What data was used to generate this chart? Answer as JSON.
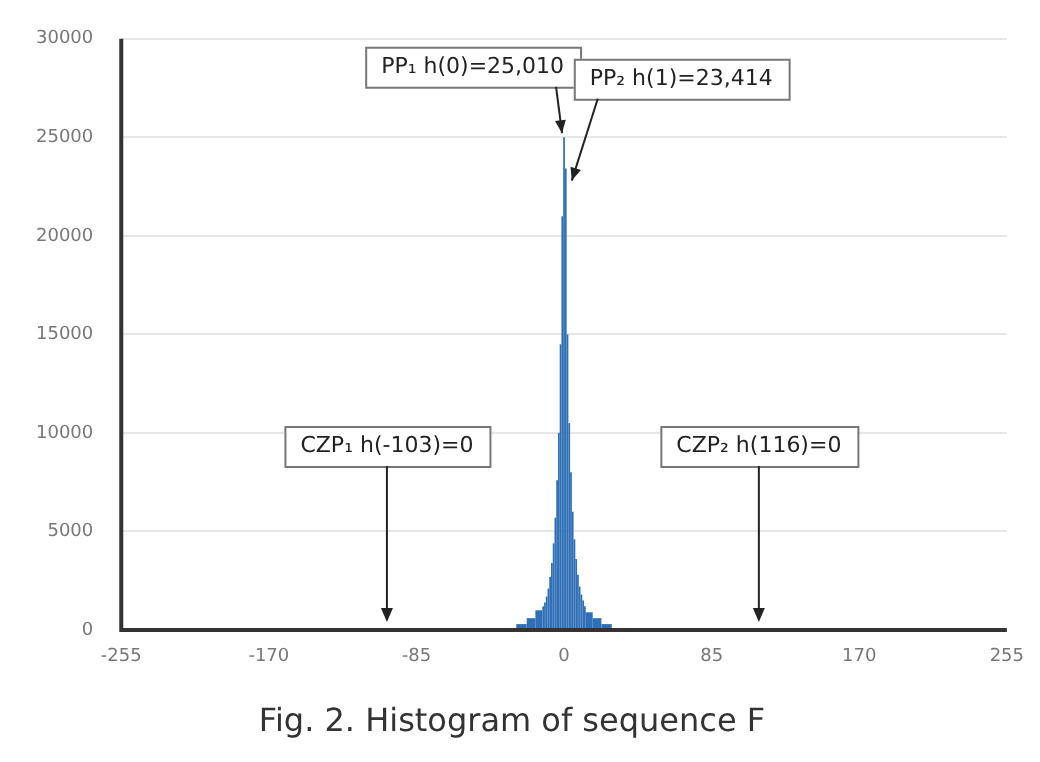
{
  "chart_data": {
    "type": "histogram",
    "title": "Fig. 2. Histogram of sequence F",
    "bins": [
      -35.5,
      -27.5,
      -21.5,
      -16.5,
      -12.5,
      -11.5,
      -10.5,
      -9.5,
      -8.5,
      -7.5,
      -6.5,
      -5.5,
      -4.5,
      -3.5,
      -2.5,
      -1.5,
      -0.5,
      0.5,
      1.5,
      2.5,
      3.5,
      4.5,
      5.5,
      6.5,
      7.5,
      8.5,
      9.5,
      10.5,
      11.5,
      12.5,
      16.5,
      21.5,
      27.5,
      35.5
    ],
    "values": [
      100,
      300,
      600,
      1000,
      1200,
      1400,
      1700,
      2100,
      2700,
      3400,
      4400,
      5700,
      7600,
      10000,
      14500,
      21000,
      25010,
      23414,
      15000,
      10500,
      8000,
      6000,
      4600,
      3600,
      2800,
      2200,
      1800,
      1500,
      1200,
      900,
      600,
      300,
      100
    ],
    "color": "#2f6fb5",
    "xlim": [
      -255,
      255
    ],
    "xticks": [
      -255,
      -170,
      -85,
      0,
      85,
      170,
      255
    ],
    "ylim": [
      0,
      30000
    ],
    "yticks": [
      0,
      5000,
      10000,
      15000,
      20000,
      25000,
      30000
    ],
    "grid": "y",
    "annotations": [
      {
        "text": "PP₁ h(0)=25,010",
        "x": 0,
        "y": 25010
      },
      {
        "text": "PP₂ h(1)=23,414",
        "x": 1,
        "y": 23414
      },
      "CZP₁ h(-103)=0",
      "CZP₂ h(116)=0"
    ]
  }
}
